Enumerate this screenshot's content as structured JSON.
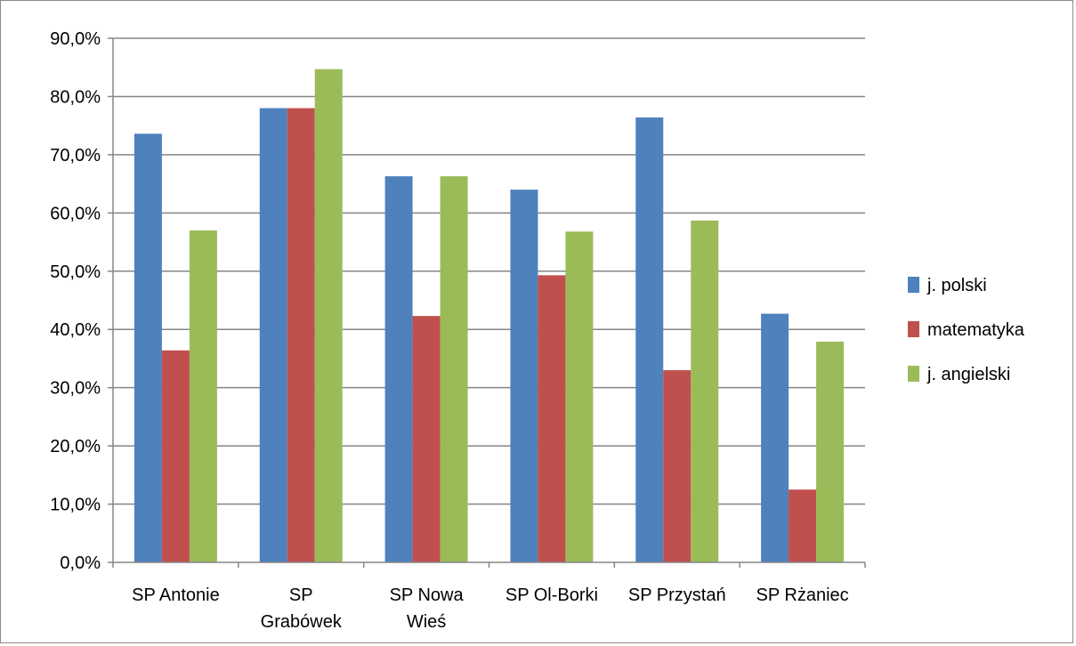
{
  "chart_data": {
    "type": "bar",
    "categories": [
      [
        "SP Antonie"
      ],
      [
        "SP",
        "Grabówek"
      ],
      [
        "SP Nowa",
        "Wieś"
      ],
      [
        "SP Ol-Borki"
      ],
      [
        "SP Przystań"
      ],
      [
        "SP Rżaniec"
      ]
    ],
    "series": [
      {
        "name": "j. polski",
        "color": "#4f81bd",
        "values": [
          73.6,
          78.0,
          66.3,
          64.0,
          76.4,
          42.7
        ]
      },
      {
        "name": "matematyka",
        "color": "#c0504d",
        "values": [
          36.4,
          78.0,
          42.3,
          49.3,
          33.0,
          12.5
        ]
      },
      {
        "name": "j. angielski",
        "color": "#9bbb59",
        "values": [
          57.0,
          84.7,
          66.3,
          56.8,
          58.7,
          37.9
        ]
      }
    ],
    "ylim": [
      0,
      90
    ],
    "ytick_step": 10,
    "ytick_labels": [
      "0,0%",
      "10,0%",
      "20,0%",
      "30,0%",
      "40,0%",
      "50,0%",
      "60,0%",
      "70,0%",
      "80,0%",
      "90,0%"
    ],
    "grid": true,
    "legend": "right"
  }
}
